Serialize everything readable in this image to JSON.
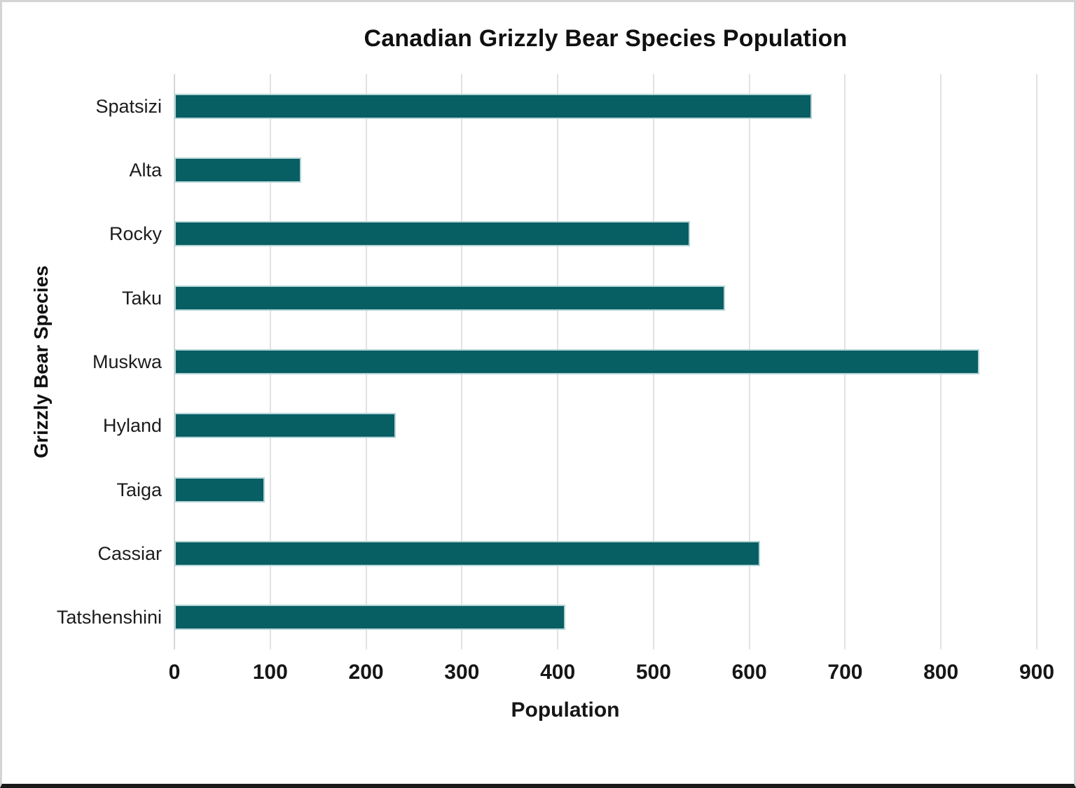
{
  "chart_data": {
    "type": "bar",
    "orientation": "horizontal",
    "title": "Canadian Grizzly Bear Species Population",
    "xlabel": "Population",
    "ylabel": "Grizzly Bear Species",
    "categories": [
      "Spatsizi",
      "Alta",
      "Rocky",
      "Taku",
      "Muskwa",
      "Hyland",
      "Taiga",
      "Cassiar",
      "Tatshenshini"
    ],
    "values": [
      665,
      132,
      538,
      575,
      840,
      231,
      94,
      611,
      408
    ],
    "xlim": [
      0,
      900
    ],
    "xticks": [
      0,
      100,
      200,
      300,
      400,
      500,
      600,
      700,
      800,
      900
    ],
    "grid": "vertical-gridlines-on",
    "legend": "none",
    "colors": {
      "bar": "#075e63",
      "bar_border": "#b3d3d5",
      "gridline": "#e2e2e2",
      "axis_line": "#d5d5d5",
      "text": "#1a1a1a"
    }
  }
}
